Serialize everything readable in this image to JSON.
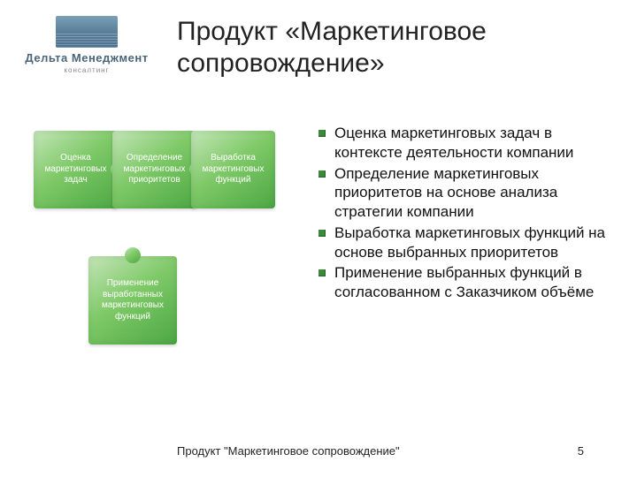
{
  "logo": {
    "title": "Дельта Менеджмент",
    "subtitle": "консалтинг"
  },
  "slide_title": "Продукт «Маркетинговое сопровождение»",
  "puzzles": {
    "top": [
      "Оценка маркетинговых задач",
      "Определение маркетинговых приоритетов",
      "Выработка маркетинговых функций"
    ],
    "bottom": "Применение выработанных маркетинговых функций"
  },
  "bullets": [
    "Оценка маркетинговых задач в контексте деятельности компании",
    "Определение маркетинговых приоритетов на основе анализа стратегии компании",
    "Выработка маркетинговых функций на основе выбранных приоритетов",
    "Применение выбранных функций в согласованном с Заказчиком объёме"
  ],
  "footer": {
    "text": "Продукт \"Маркетинговое сопровождение\"",
    "page": "5"
  },
  "colors": {
    "puzzle_gradient_light": "#c4e6b8",
    "puzzle_gradient_dark": "#4ca843",
    "bullet_marker": "#3a8a3a",
    "title_color": "#222222",
    "logo_title": "#4a6578"
  }
}
